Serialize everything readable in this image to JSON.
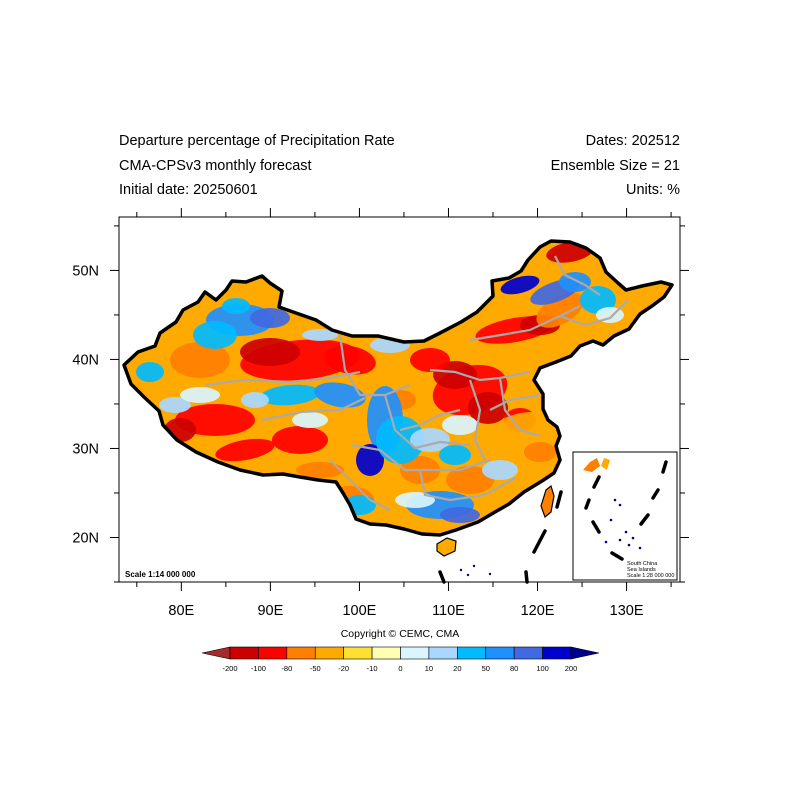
{
  "header": {
    "left": [
      "Departure percentage of Precipitation Rate",
      "CMA-CPSv3 monthly forecast",
      "Initial date: 20250601"
    ],
    "right": [
      "Dates: 202512",
      "Ensemble Size = 21",
      "Units: %"
    ]
  },
  "map": {
    "lon_range": [
      73,
      136
    ],
    "lat_range": [
      15,
      56
    ],
    "lon_ticks": [
      80,
      90,
      100,
      110,
      120,
      130
    ],
    "lon_labels": [
      "80E",
      "90E",
      "100E",
      "110E",
      "120E",
      "130E"
    ],
    "lat_ticks": [
      20,
      30,
      40,
      50
    ],
    "lat_labels": [
      "20N",
      "30N",
      "40N",
      "50N"
    ],
    "scale_label": "Scale 1:14 000 000",
    "inset": {
      "line1": "South China",
      "line2": "Sea Islands",
      "line3": "Scale 1:28 000 000"
    }
  },
  "copyright": "Copyright © CEMC, CMA",
  "colorbar": {
    "labels": [
      "-200",
      "-100",
      "-80",
      "-50",
      "-20",
      "-10",
      "0",
      "10",
      "20",
      "50",
      "80",
      "100",
      "200"
    ],
    "colors": [
      "#a52a2a",
      "#cc0000",
      "#ff0000",
      "#ff7f00",
      "#ffaa00",
      "#ffe033",
      "#ffffb3",
      "#d9f5ff",
      "#a8d8ff",
      "#00bbff",
      "#1e90ff",
      "#4169e1",
      "#0000cd",
      "#00008b"
    ]
  }
}
